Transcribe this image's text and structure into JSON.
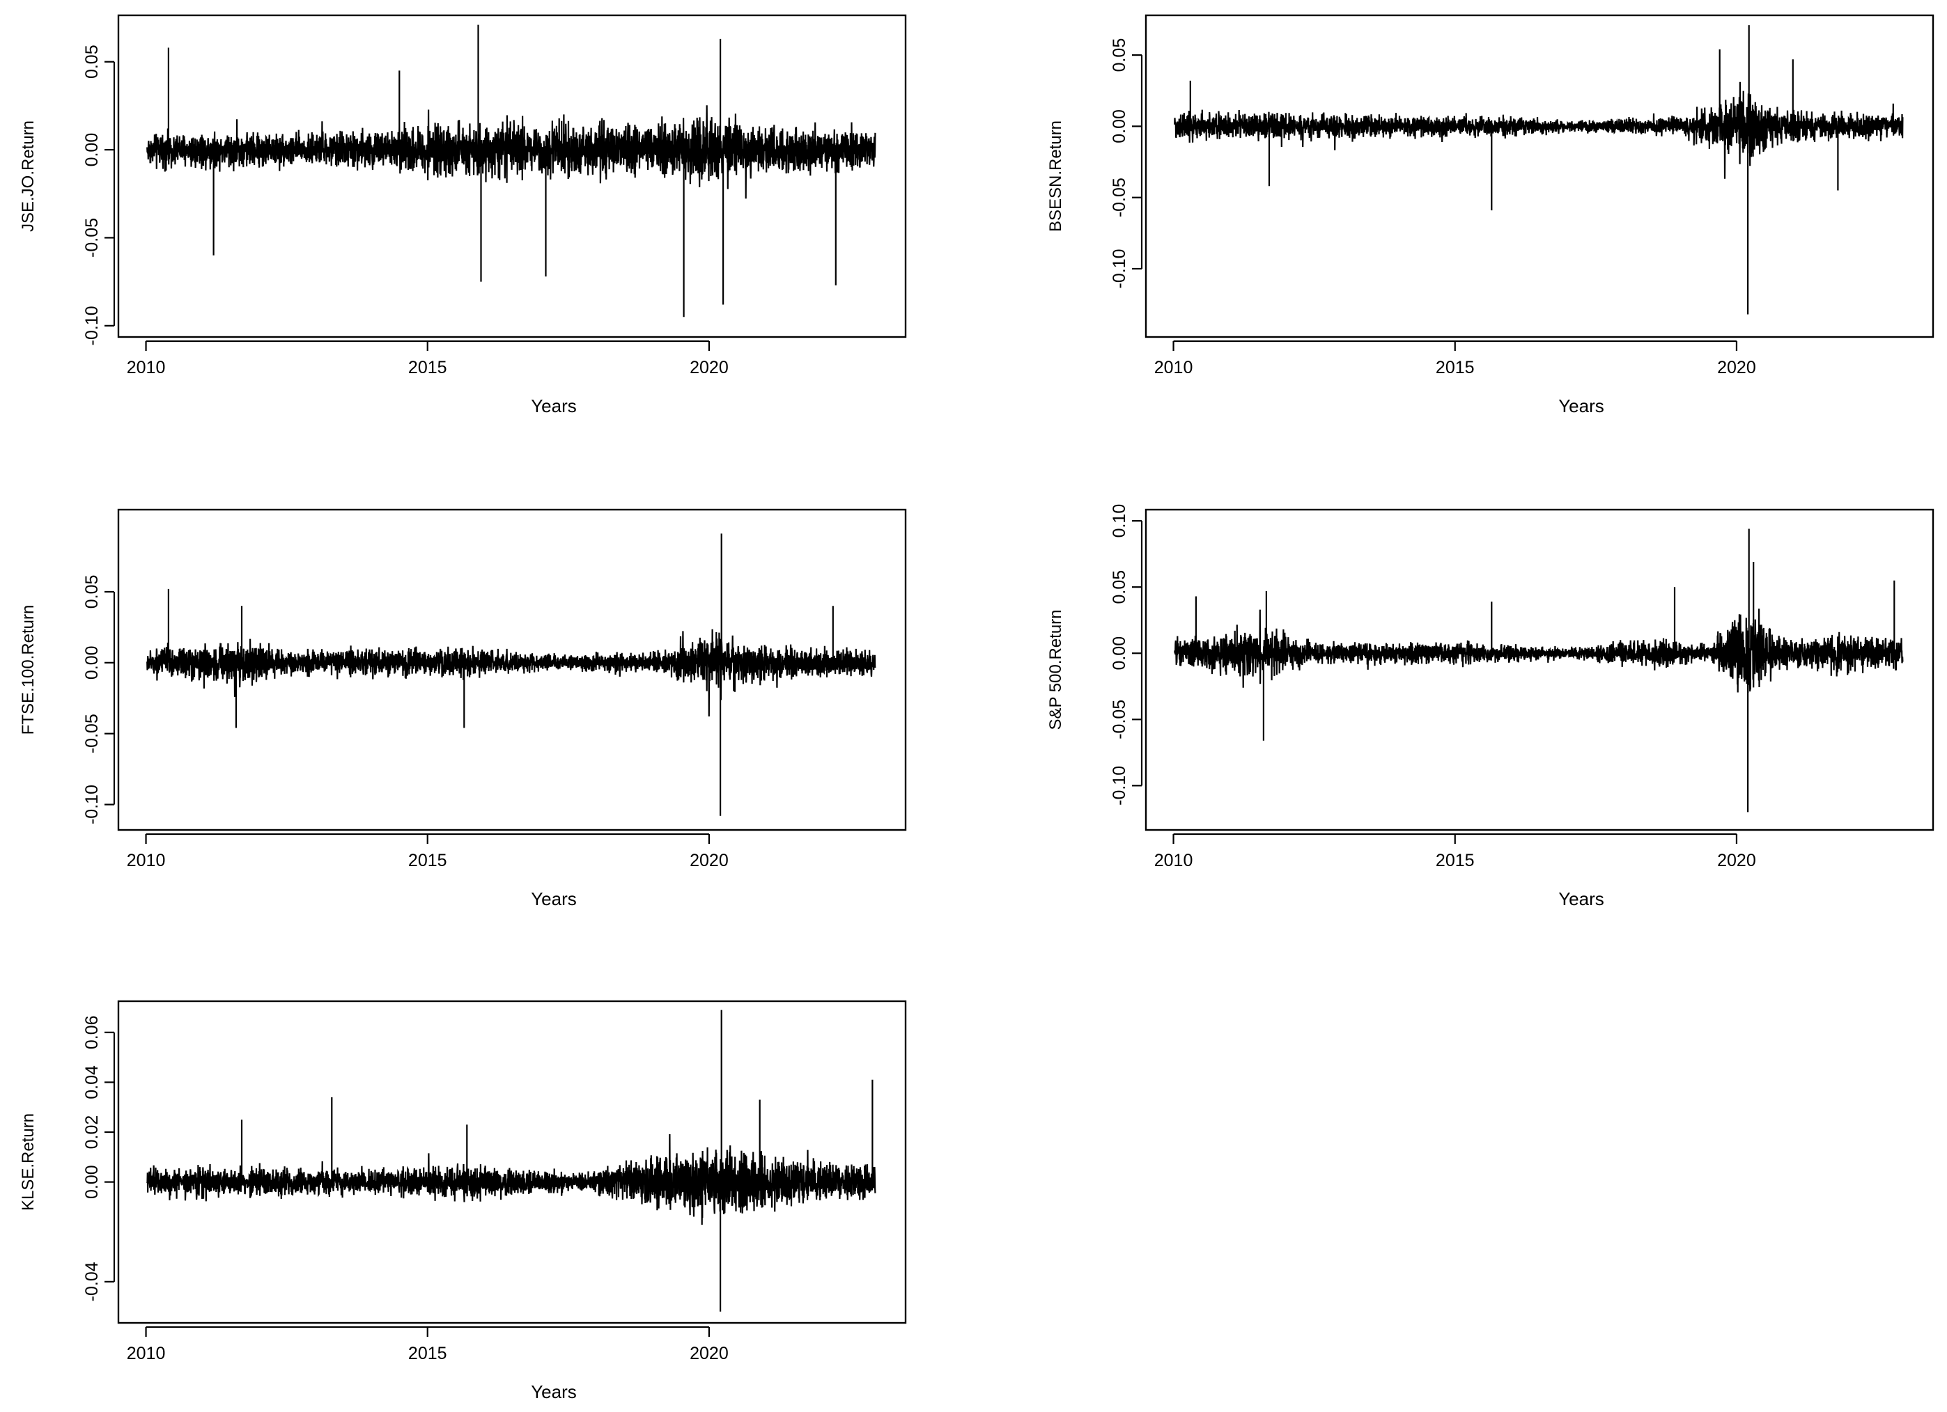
{
  "chart_data": [
    {
      "type": "line",
      "title": "",
      "xlabel": "Years",
      "ylabel": "JSE.JO.Return",
      "xlim": [
        2010,
        2023
      ],
      "ylim": [
        -0.1,
        0.07
      ],
      "x_ticks": [
        "2010",
        "2015",
        "2020"
      ],
      "y_ticks": [
        "-0.10",
        "-0.05",
        "0.00",
        "0.05"
      ],
      "x_tick_values": [
        2010,
        2015,
        2020
      ],
      "y_tick_values": [
        -0.1,
        -0.05,
        0.0,
        0.05
      ],
      "grid": false,
      "color": "#000000",
      "series": [
        {
          "values_description_free": true,
          "base_amplitude": [
            [
              2010,
              0.012
            ],
            [
              2011,
              0.014
            ],
            [
              2013,
              0.012
            ],
            [
              2015,
              0.018
            ],
            [
              2016,
              0.02
            ],
            [
              2018,
              0.02
            ],
            [
              2019,
              0.019
            ],
            [
              2020,
              0.026
            ],
            [
              2021,
              0.017
            ],
            [
              2022.9,
              0.016
            ]
          ],
          "spikes": [
            [
              2010.4,
              0.058
            ],
            [
              2011.2,
              -0.06
            ],
            [
              2014.5,
              0.045
            ],
            [
              2015.9,
              0.071
            ],
            [
              2015.95,
              -0.075
            ],
            [
              2017.1,
              -0.072
            ],
            [
              2019.55,
              -0.095
            ],
            [
              2020.2,
              0.063
            ],
            [
              2020.25,
              -0.088
            ],
            [
              2022.25,
              -0.077
            ]
          ]
        }
      ]
    },
    {
      "type": "line",
      "title": "",
      "xlabel": "Years",
      "ylabel": "BSESN.Return",
      "xlim": [
        2010,
        2023
      ],
      "ylim": [
        -0.14,
        0.07
      ],
      "x_ticks": [
        "2010",
        "2015",
        "2020"
      ],
      "y_ticks": [
        "-0.10",
        "-0.05",
        "0.00",
        "0.05"
      ],
      "x_tick_values": [
        2010,
        2015,
        2020
      ],
      "y_tick_values": [
        -0.1,
        -0.05,
        0.0,
        0.05
      ],
      "grid": false,
      "color": "#000000",
      "series": [
        {
          "base_amplitude": [
            [
              2010,
              0.014
            ],
            [
              2012,
              0.012
            ],
            [
              2014,
              0.01
            ],
            [
              2016,
              0.009
            ],
            [
              2017,
              0.006
            ],
            [
              2019,
              0.008
            ],
            [
              2020.2,
              0.035
            ],
            [
              2020.6,
              0.018
            ],
            [
              2021.5,
              0.012
            ],
            [
              2022.9,
              0.011
            ]
          ],
          "spikes": [
            [
              2010.3,
              0.032
            ],
            [
              2011.7,
              -0.042
            ],
            [
              2015.65,
              -0.059
            ],
            [
              2019.7,
              0.054
            ],
            [
              2020.2,
              -0.132
            ],
            [
              2020.22,
              0.071
            ],
            [
              2021.0,
              0.047
            ],
            [
              2021.8,
              -0.045
            ]
          ]
        }
      ]
    },
    {
      "type": "line",
      "title": "",
      "xlabel": "Years",
      "ylabel": "FTSE.100.Return",
      "xlim": [
        2010,
        2023
      ],
      "ylim": [
        -0.11,
        0.1
      ],
      "x_ticks": [
        "2010",
        "2015",
        "2020"
      ],
      "y_ticks": [
        "-0.10",
        "-0.05",
        "0.00",
        "0.05"
      ],
      "x_tick_values": [
        2010,
        2015,
        2020
      ],
      "y_tick_values": [
        -0.1,
        -0.05,
        0.0,
        0.05
      ],
      "grid": false,
      "color": "#000000",
      "series": [
        {
          "base_amplitude": [
            [
              2010,
              0.012
            ],
            [
              2011.7,
              0.02
            ],
            [
              2012.5,
              0.011
            ],
            [
              2015.5,
              0.015
            ],
            [
              2017,
              0.008
            ],
            [
              2019,
              0.009
            ],
            [
              2020.2,
              0.03
            ],
            [
              2020.8,
              0.016
            ],
            [
              2022,
              0.014
            ],
            [
              2022.9,
              0.012
            ]
          ],
          "spikes": [
            [
              2010.4,
              0.052
            ],
            [
              2011.6,
              -0.046
            ],
            [
              2011.7,
              0.04
            ],
            [
              2015.65,
              -0.046
            ],
            [
              2020.2,
              -0.108
            ],
            [
              2020.22,
              0.091
            ],
            [
              2022.2,
              0.04
            ]
          ]
        }
      ]
    },
    {
      "type": "line",
      "title": "",
      "xlabel": "Years",
      "ylabel": "S&P 500.Return",
      "xlim": [
        2010,
        2023
      ],
      "ylim": [
        -0.125,
        0.1
      ],
      "x_ticks": [
        "2010",
        "2015",
        "2020"
      ],
      "y_ticks": [
        "-0.10",
        "-0.05",
        "0.00",
        "0.05",
        "0.10"
      ],
      "x_tick_values": [
        2010,
        2015,
        2020
      ],
      "y_tick_values": [
        -0.1,
        -0.05,
        0.0,
        0.05,
        0.1
      ],
      "grid": false,
      "color": "#000000",
      "series": [
        {
          "base_amplitude": [
            [
              2010,
              0.014
            ],
            [
              2011.6,
              0.025
            ],
            [
              2012.5,
              0.01
            ],
            [
              2015.5,
              0.011
            ],
            [
              2017,
              0.005
            ],
            [
              2018.2,
              0.014
            ],
            [
              2019.5,
              0.009
            ],
            [
              2020.2,
              0.05
            ],
            [
              2020.8,
              0.015
            ],
            [
              2022,
              0.018
            ],
            [
              2022.9,
              0.016
            ]
          ],
          "spikes": [
            [
              2010.4,
              0.043
            ],
            [
              2011.6,
              -0.066
            ],
            [
              2011.65,
              0.047
            ],
            [
              2015.65,
              0.039
            ],
            [
              2018.9,
              0.05
            ],
            [
              2020.2,
              -0.12
            ],
            [
              2020.22,
              0.094
            ],
            [
              2020.3,
              0.069
            ],
            [
              2022.8,
              0.055
            ]
          ]
        }
      ]
    },
    {
      "type": "line",
      "title": "",
      "xlabel": "Years",
      "ylabel": "KLSE.Return",
      "xlim": [
        2010,
        2023
      ],
      "ylim": [
        -0.052,
        0.068
      ],
      "x_ticks": [
        "2010",
        "2015",
        "2020"
      ],
      "y_ticks": [
        "-0.04",
        "0.00",
        "0.02",
        "0.04",
        "0.06"
      ],
      "x_tick_values": [
        2010,
        2015,
        2020
      ],
      "y_tick_values": [
        -0.04,
        0.0,
        0.02,
        0.04,
        0.06
      ],
      "grid": false,
      "color": "#000000",
      "series": [
        {
          "base_amplitude": [
            [
              2010,
              0.008
            ],
            [
              2012,
              0.008
            ],
            [
              2014,
              0.006
            ],
            [
              2015.7,
              0.01
            ],
            [
              2017.5,
              0.005
            ],
            [
              2018.5,
              0.01
            ],
            [
              2020.2,
              0.02
            ],
            [
              2020.9,
              0.014
            ],
            [
              2022,
              0.01
            ],
            [
              2022.9,
              0.009
            ]
          ],
          "spikes": [
            [
              2011.7,
              0.025
            ],
            [
              2013.3,
              0.034
            ],
            [
              2015.7,
              0.023
            ],
            [
              2020.2,
              -0.052
            ],
            [
              2020.22,
              0.069
            ],
            [
              2020.9,
              0.033
            ],
            [
              2022.9,
              0.041
            ]
          ]
        }
      ]
    }
  ]
}
